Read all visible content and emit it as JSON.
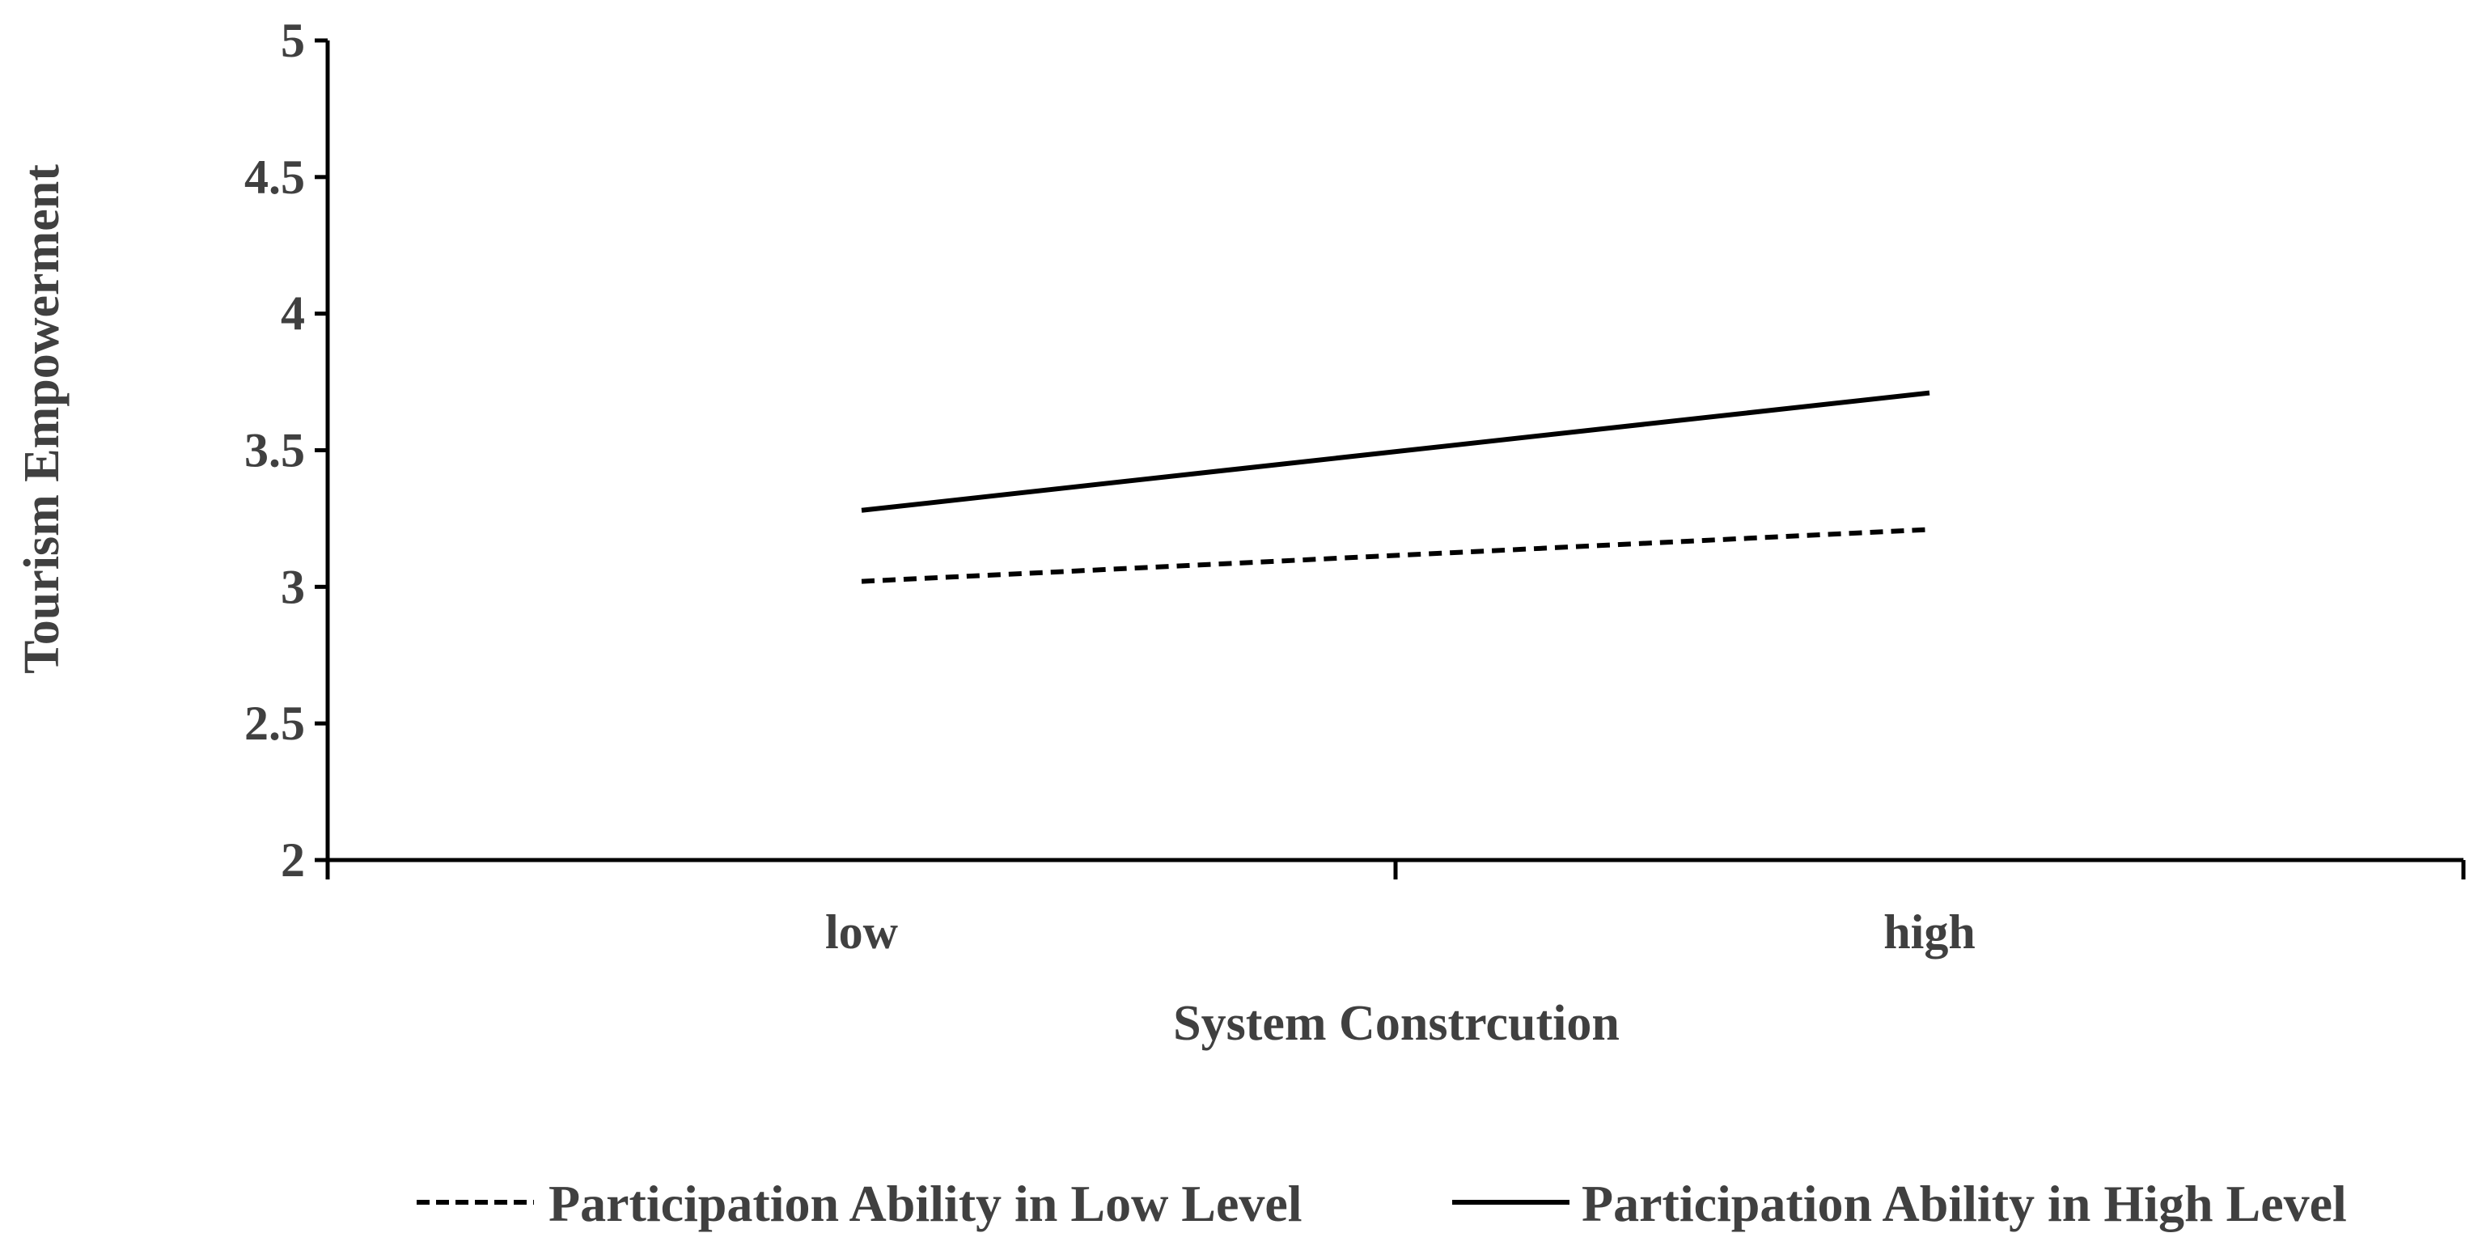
{
  "chart_data": {
    "type": "line",
    "title": "",
    "xlabel": "System Constrcution",
    "ylabel": "Tourism Empowerment",
    "categories": [
      "low",
      "high"
    ],
    "ylim": [
      2,
      5
    ],
    "yticks": [
      "2",
      "2.5",
      "3",
      "3.5",
      "4",
      "4.5",
      "5"
    ],
    "grid": false,
    "legend_position": "bottom",
    "series": [
      {
        "name": "Participation Ability in Low Level",
        "values": [
          3.02,
          3.21
        ],
        "style": "dashed",
        "color": "#000000"
      },
      {
        "name": "Participation Ability in High Level",
        "values": [
          3.28,
          3.71
        ],
        "style": "solid",
        "color": "#000000"
      }
    ]
  },
  "colors": {
    "axis": "#000000",
    "text": "#404040",
    "background": "#ffffff"
  }
}
